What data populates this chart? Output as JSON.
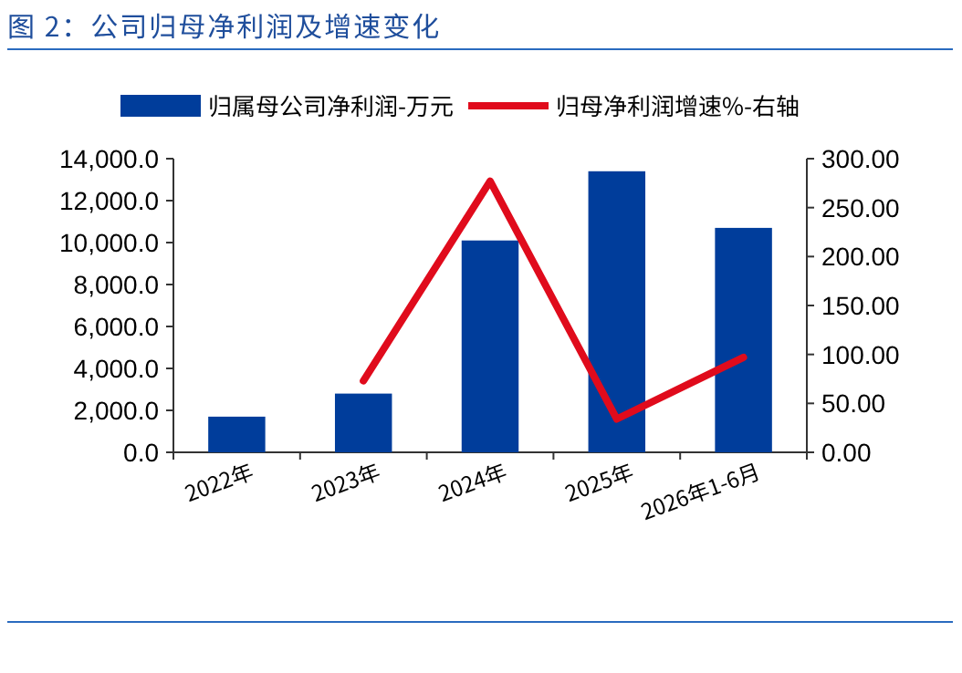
{
  "chart_data": {
    "type": "bar",
    "title": "图 2：公司归母净利润及增速变化",
    "categories": [
      "2022年",
      "2023年",
      "2024年",
      "2025年",
      "2026年1-6月"
    ],
    "series": [
      {
        "name": "归属母公司净利润-万元",
        "color": "#003d9b",
        "values": [
          1700,
          2800,
          10100,
          13400,
          10700
        ]
      },
      {
        "name": "归母净利润增速%-右轴",
        "type": "line",
        "axis": "y2",
        "color": "#e00b1c",
        "values": [
          null,
          73,
          277,
          34,
          97
        ]
      }
    ],
    "ylim": [
      0,
      14000
    ],
    "yticks": [
      {
        "value": 0,
        "label": "0.0"
      },
      {
        "value": 2000,
        "label": "2,000.0"
      },
      {
        "value": 4000,
        "label": "4,000.0"
      },
      {
        "value": 6000,
        "label": "6,000.0"
      },
      {
        "value": 8000,
        "label": "8,000.0"
      },
      {
        "value": 10000,
        "label": "10,000.0"
      },
      {
        "value": 12000,
        "label": "12,000.0"
      },
      {
        "value": 14000,
        "label": "14,000.0"
      }
    ],
    "y2lim": [
      0,
      300
    ],
    "y2ticks": [
      {
        "value": 0,
        "label": "0.00"
      },
      {
        "value": 50,
        "label": "50.00"
      },
      {
        "value": 100,
        "label": "100.00"
      },
      {
        "value": 150,
        "label": "150.00"
      },
      {
        "value": 200,
        "label": "200.00"
      },
      {
        "value": 250,
        "label": "250.00"
      },
      {
        "value": 300,
        "label": "300.00"
      }
    ],
    "legend": "top",
    "grid": false
  }
}
